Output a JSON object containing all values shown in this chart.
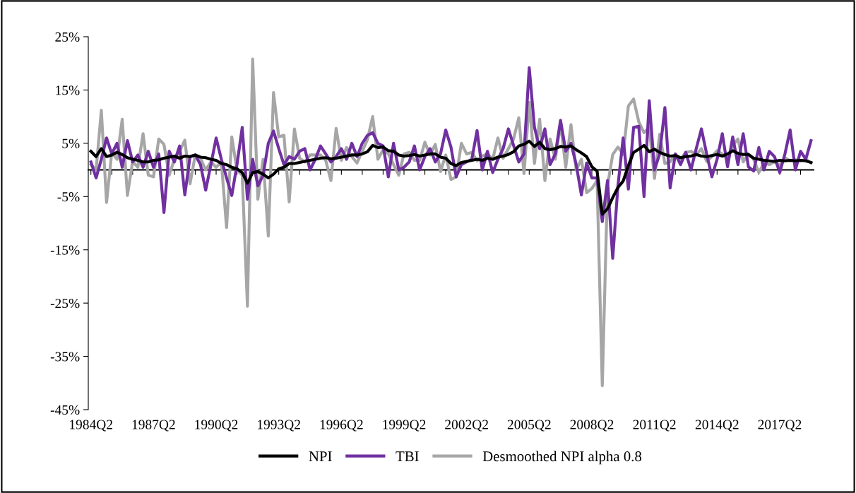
{
  "chart_data": {
    "type": "line",
    "categories": [
      "1984Q2",
      null,
      null,
      null,
      null,
      null,
      null,
      null,
      null,
      null,
      null,
      null,
      "1987Q2",
      null,
      null,
      null,
      null,
      null,
      null,
      null,
      null,
      null,
      null,
      null,
      "1990Q2",
      null,
      null,
      null,
      null,
      null,
      null,
      null,
      null,
      null,
      null,
      null,
      "1993Q2",
      null,
      null,
      null,
      null,
      null,
      null,
      null,
      null,
      null,
      null,
      null,
      "1996Q2",
      null,
      null,
      null,
      null,
      null,
      null,
      null,
      null,
      null,
      null,
      null,
      "1999Q2",
      null,
      null,
      null,
      null,
      null,
      null,
      null,
      null,
      null,
      null,
      null,
      "2002Q2",
      null,
      null,
      null,
      null,
      null,
      null,
      null,
      null,
      null,
      null,
      null,
      "2005Q2",
      null,
      null,
      null,
      null,
      null,
      null,
      null,
      null,
      null,
      null,
      null,
      "2008Q2",
      null,
      null,
      null,
      null,
      null,
      null,
      null,
      null,
      null,
      null,
      null,
      "2011Q2",
      null,
      null,
      null,
      null,
      null,
      null,
      null,
      null,
      null,
      null,
      null,
      "2014Q2",
      null,
      null,
      null,
      null,
      null,
      null,
      null,
      null,
      null,
      null,
      null,
      "2017Q2",
      null,
      null,
      null,
      null,
      null,
      null
    ],
    "series": [
      {
        "name": "NPI",
        "color": "#000000",
        "values": [
          3.5,
          2.5,
          4.0,
          2.5,
          2.8,
          3.3,
          2.9,
          2.3,
          2.0,
          1.8,
          1.5,
          1.5,
          1.8,
          1.9,
          2.2,
          2.4,
          2.6,
          2.2,
          2.6,
          2.5,
          2.8,
          2.4,
          2.3,
          2.0,
          1.8,
          1.2,
          1.0,
          0.5,
          0.2,
          -0.5,
          -2.5,
          -0.5,
          -0.3,
          -0.8,
          -1.5,
          -0.8,
          0.2,
          0.5,
          1.2,
          1.2,
          1.4,
          1.6,
          1.8,
          2.0,
          2.2,
          2.3,
          2.1,
          2.2,
          2.4,
          2.6,
          2.8,
          2.8,
          3.0,
          3.4,
          4.6,
          4.2,
          4.3,
          3.6,
          3.5,
          2.8,
          2.6,
          2.7,
          2.9,
          2.6,
          2.8,
          3.0,
          3.0,
          2.4,
          2.2,
          1.2,
          0.8,
          1.4,
          1.6,
          1.8,
          2.0,
          1.8,
          2.2,
          2.0,
          2.4,
          2.6,
          2.9,
          3.4,
          4.5,
          4.8,
          5.4,
          4.4,
          5.2,
          4.0,
          3.8,
          4.0,
          4.4,
          4.3,
          4.5,
          3.8,
          3.2,
          2.5,
          0.6,
          -0.2,
          -8.3,
          -7.3,
          -5.2,
          -3.3,
          -2.1,
          0.8,
          3.3,
          3.9,
          4.6,
          3.4,
          3.9,
          3.3,
          2.9,
          2.6,
          2.7,
          2.3,
          2.5,
          2.6,
          2.9,
          2.6,
          2.5,
          2.7,
          2.9,
          2.6,
          3.0,
          3.6,
          3.1,
          2.9,
          2.9,
          2.2,
          2.0,
          1.8,
          1.7,
          1.6,
          1.8,
          1.7,
          1.8,
          1.7,
          1.8,
          1.7,
          1.4
        ]
      },
      {
        "name": "TBI",
        "color": "#7030a0",
        "values": [
          1.5,
          -1.5,
          2,
          6,
          3,
          5,
          0.5,
          5.5,
          1.5,
          2.8,
          0.5,
          3.5,
          0.5,
          3,
          -8,
          3.5,
          1.5,
          4.5,
          -4.7,
          2.5,
          2.8,
          1,
          -3.8,
          1,
          6,
          2,
          -1.5,
          -4.8,
          1,
          8,
          -5.5,
          2,
          -3,
          -1,
          5,
          7.3,
          4,
          1,
          2.5,
          2,
          3.5,
          4,
          0,
          2,
          4.5,
          3,
          1.5,
          2.5,
          4,
          2,
          5,
          2.5,
          5,
          6.5,
          7,
          5,
          4.5,
          -1.3,
          5,
          0,
          0.5,
          1.5,
          4.5,
          0,
          2.5,
          4,
          1.5,
          3,
          7.5,
          4.3,
          -1.3,
          1,
          1.5,
          2,
          7.4,
          0,
          3.5,
          -0.5,
          2,
          4,
          7.7,
          4.6,
          1.5,
          3,
          19.2,
          8,
          4,
          7.7,
          1,
          3,
          9.3,
          3.5,
          5,
          1,
          -4.7,
          1.3,
          -1.5,
          -1.5,
          -9.7,
          -2,
          -16.6,
          -3,
          6,
          -3.6,
          8,
          8.2,
          -5,
          13,
          0,
          3,
          11.7,
          -3.4,
          3,
          1,
          3.3,
          0,
          4,
          7.7,
          3,
          -1.3,
          2,
          6.8,
          0.6,
          6.2,
          1,
          6.8,
          0.6,
          -0.2,
          4.2,
          0,
          3.5,
          2.5,
          -0.5,
          3,
          7.5,
          0,
          3.5,
          2,
          5.5
        ]
      },
      {
        "name": "Desmoothed NPI alpha 0.8",
        "color": "#a6a6a6",
        "values": [
          1,
          0,
          11.2,
          -6.1,
          3.3,
          2,
          9.5,
          -4.8,
          1.6,
          0.5,
          6.8,
          -1,
          -1.3,
          5.8,
          4.8,
          -1,
          2,
          3.5,
          5.6,
          -2.6,
          2.8,
          2.2,
          0,
          1.5,
          0.5,
          1.5,
          -10.8,
          6.2,
          0,
          -1,
          -25.6,
          20.8,
          -5.5,
          2,
          -12.4,
          14.5,
          6.2,
          6.5,
          -6,
          7.7,
          2.2,
          1.5,
          2.8,
          2.8,
          2.8,
          1.8,
          -2,
          7.8,
          1.8,
          4.2,
          2.5,
          1.3,
          3.5,
          5.7,
          10,
          2,
          3.8,
          3,
          1,
          -1,
          3,
          3.3,
          1.8,
          1.8,
          5.2,
          2.8,
          4.8,
          -0.3,
          2.8,
          -1.8,
          -1.3,
          5,
          3,
          3.3,
          1.7,
          2.6,
          3,
          2,
          6,
          2.2,
          4,
          5.8,
          9.8,
          -0.7,
          12.7,
          1.2,
          9.5,
          -2,
          5.8,
          2,
          8.7,
          0.5,
          8.5,
          0,
          2,
          -4.3,
          -3.5,
          -2,
          -40.5,
          -3,
          2.9,
          4.3,
          2.9,
          12,
          13.3,
          9,
          7,
          8,
          -1.6,
          6.7,
          1.2,
          1.5,
          3,
          2,
          3.3,
          3.5,
          2.8,
          4,
          1.6,
          2.5,
          3.6,
          3,
          2,
          4.6,
          5.8,
          1.5,
          3,
          2,
          -0.5,
          1.3,
          1,
          1.5,
          0.8,
          2.3,
          1.7,
          1.9,
          1.7,
          2,
          1.3
        ]
      }
    ],
    "ylim": [
      -45,
      25
    ],
    "yticks": [
      {
        "value": -45,
        "label": "-45%"
      },
      {
        "value": -35,
        "label": "-35%"
      },
      {
        "value": -25,
        "label": "-25%"
      },
      {
        "value": -15,
        "label": "-15%"
      },
      {
        "value": -5,
        "label": "-5%"
      },
      {
        "value": 5,
        "label": "5%"
      },
      {
        "value": 15,
        "label": "15%"
      },
      {
        "value": 25,
        "label": "25%"
      }
    ],
    "grid": false,
    "legend": "bottom",
    "marker": "none",
    "line_style": "solid"
  }
}
